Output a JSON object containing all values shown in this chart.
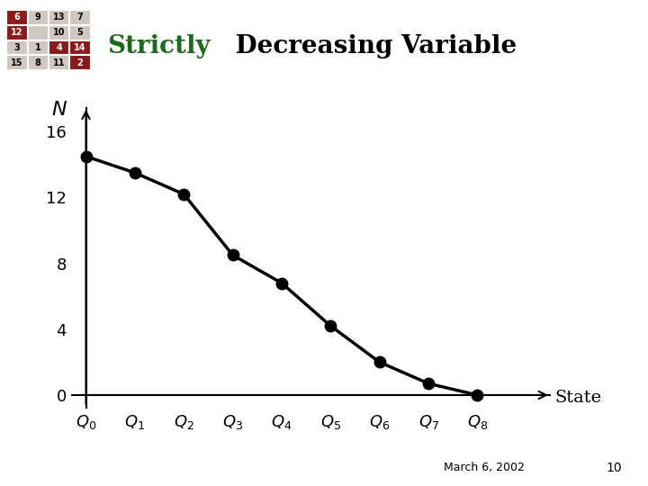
{
  "title_strictly": "Strictly",
  "title_rest": " Decreasing Variable",
  "title_color_strictly": "#1a6b1a",
  "title_color_rest": "#000000",
  "title_fontsize": 20,
  "ylabel": "N",
  "xlabel": "State",
  "x_values": [
    0,
    1,
    2,
    3,
    4,
    5,
    6,
    7,
    8
  ],
  "y_values": [
    14.5,
    13.5,
    12.2,
    8.5,
    6.8,
    4.2,
    2.0,
    0.7,
    0.0
  ],
  "x_tick_labels": [
    "$Q_0$",
    "$Q_1$",
    "$Q_2$",
    "$Q_3$",
    "$Q_4$",
    "$Q_5$",
    "$Q_6$",
    "$Q_7$",
    "$Q_8$"
  ],
  "y_tick_values": [
    0,
    4,
    8,
    12,
    16
  ],
  "y_tick_labels": [
    "0",
    "4",
    "8",
    "12",
    "16"
  ],
  "ylim": [
    -0.8,
    17.5
  ],
  "xlim": [
    -0.3,
    9.5
  ],
  "line_color": "#000000",
  "marker_color": "#000000",
  "marker_size": 9,
  "line_width": 2.5,
  "bg_color": "#ffffff",
  "date_text": "March 6, 2002",
  "page_number": "10",
  "grid_table": {
    "cells": [
      [
        "6",
        "9",
        "13",
        "7"
      ],
      [
        "12",
        "",
        "10",
        "5"
      ],
      [
        "3",
        "1",
        "4",
        "14"
      ],
      [
        "15",
        "8",
        "11",
        "2"
      ]
    ],
    "dark_cells": [
      [
        0,
        0
      ],
      [
        1,
        0
      ],
      [
        2,
        2
      ],
      [
        2,
        3
      ],
      [
        3,
        3
      ]
    ],
    "dark_color": "#8B1A1A",
    "light_color": "#d0c8c0",
    "text_color_dark": "#ffffff",
    "text_color_light": "#000000"
  }
}
